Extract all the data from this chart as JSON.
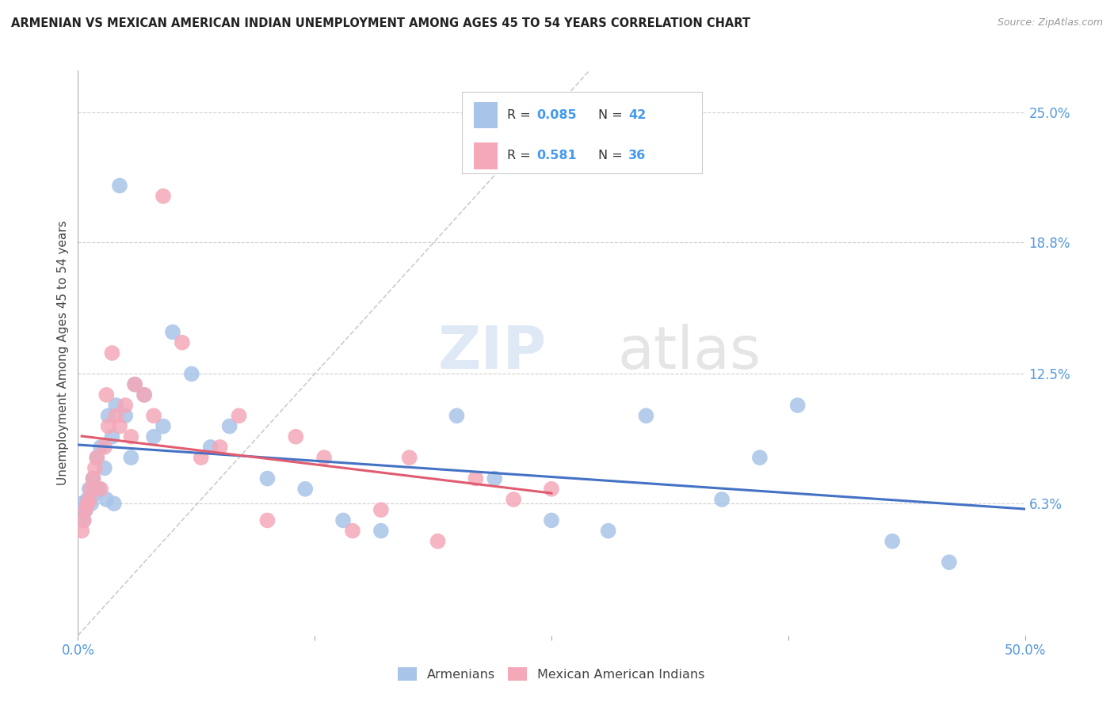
{
  "title": "ARMENIAN VS MEXICAN AMERICAN INDIAN UNEMPLOYMENT AMONG AGES 45 TO 54 YEARS CORRELATION CHART",
  "source": "Source: ZipAtlas.com",
  "ylabel": "Unemployment Among Ages 45 to 54 years",
  "ytick_labels": [
    "6.3%",
    "12.5%",
    "18.8%",
    "25.0%"
  ],
  "ytick_values": [
    6.3,
    12.5,
    18.8,
    25.0
  ],
  "xlim": [
    0.0,
    50.0
  ],
  "ylim": [
    0.0,
    27.0
  ],
  "watermark": "ZIPatlas",
  "background_color": "#ffffff",
  "armenian_color": "#a8c4e8",
  "mexican_color": "#f4a8b8",
  "armenian_line_color": "#4472c4",
  "mexican_line_color": "#e05c70",
  "diagonal_color": "#c0c0c0",
  "grid_color": "#d0d0d0",
  "arm_x": [
    0.2,
    0.3,
    0.4,
    0.5,
    0.6,
    0.7,
    0.8,
    0.9,
    1.0,
    1.1,
    1.2,
    1.4,
    1.5,
    1.6,
    1.8,
    1.9,
    2.0,
    2.2,
    2.5,
    2.8,
    3.0,
    3.5,
    4.0,
    4.5,
    5.0,
    6.0,
    7.0,
    8.0,
    10.0,
    12.0,
    14.0,
    16.0,
    20.0,
    22.0,
    25.0,
    28.0,
    30.0,
    34.0,
    36.0,
    38.0,
    43.0,
    46.0
  ],
  "arm_y": [
    6.3,
    5.5,
    6.0,
    6.5,
    7.0,
    6.3,
    7.5,
    6.8,
    8.5,
    7.0,
    9.0,
    8.0,
    6.5,
    10.5,
    9.5,
    6.3,
    11.0,
    21.5,
    10.5,
    8.5,
    12.0,
    11.5,
    9.5,
    10.0,
    14.5,
    12.5,
    9.0,
    10.0,
    7.5,
    7.0,
    5.5,
    5.0,
    10.5,
    7.5,
    5.5,
    5.0,
    10.5,
    6.5,
    8.5,
    11.0,
    4.5,
    3.5
  ],
  "mex_x": [
    0.2,
    0.3,
    0.4,
    0.5,
    0.6,
    0.7,
    0.8,
    0.9,
    1.0,
    1.2,
    1.4,
    1.5,
    1.6,
    1.8,
    2.0,
    2.2,
    2.5,
    2.8,
    3.0,
    3.5,
    4.0,
    4.5,
    5.5,
    6.5,
    7.5,
    8.5,
    10.0,
    11.5,
    13.0,
    14.5,
    16.0,
    17.5,
    19.0,
    21.0,
    23.0,
    25.0
  ],
  "mex_y": [
    5.0,
    5.5,
    6.0,
    6.3,
    6.5,
    7.0,
    7.5,
    8.0,
    8.5,
    7.0,
    9.0,
    11.5,
    10.0,
    13.5,
    10.5,
    10.0,
    11.0,
    9.5,
    12.0,
    11.5,
    10.5,
    21.0,
    14.0,
    8.5,
    9.0,
    10.5,
    5.5,
    9.5,
    8.5,
    5.0,
    6.0,
    8.5,
    4.5,
    7.5,
    6.5,
    7.0
  ]
}
